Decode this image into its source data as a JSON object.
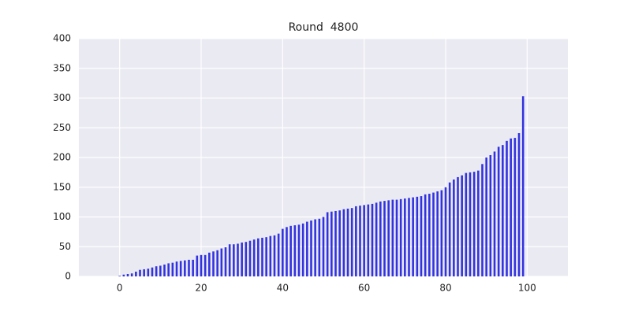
{
  "chart_data": {
    "type": "bar",
    "title": "Round  4800",
    "x": [
      0,
      1,
      2,
      3,
      4,
      5,
      6,
      7,
      8,
      9,
      10,
      11,
      12,
      13,
      14,
      15,
      16,
      17,
      18,
      19,
      20,
      21,
      22,
      23,
      24,
      25,
      26,
      27,
      28,
      29,
      30,
      31,
      32,
      33,
      34,
      35,
      36,
      37,
      38,
      39,
      40,
      41,
      42,
      43,
      44,
      45,
      46,
      47,
      48,
      49,
      50,
      51,
      52,
      53,
      54,
      55,
      56,
      57,
      58,
      59,
      60,
      61,
      62,
      63,
      64,
      65,
      66,
      67,
      68,
      69,
      70,
      71,
      72,
      73,
      74,
      75,
      76,
      77,
      78,
      79,
      80,
      81,
      82,
      83,
      84,
      85,
      86,
      87,
      88,
      89,
      90,
      91,
      92,
      93,
      94,
      95,
      96,
      97,
      98,
      99
    ],
    "values": [
      1,
      3,
      4,
      5,
      8,
      11,
      12,
      13,
      15,
      17,
      18,
      20,
      22,
      23,
      25,
      26,
      27,
      28,
      28,
      35,
      36,
      36,
      40,
      42,
      44,
      47,
      49,
      54,
      54,
      55,
      57,
      58,
      60,
      62,
      64,
      65,
      66,
      68,
      69,
      72,
      80,
      83,
      85,
      86,
      87,
      89,
      92,
      94,
      96,
      97,
      100,
      108,
      109,
      110,
      111,
      113,
      114,
      115,
      118,
      119,
      120,
      121,
      122,
      124,
      126,
      127,
      128,
      129,
      129,
      130,
      131,
      132,
      133,
      134,
      135,
      138,
      139,
      141,
      143,
      145,
      150,
      158,
      163,
      167,
      170,
      174,
      175,
      176,
      178,
      189,
      200,
      204,
      210,
      218,
      221,
      228,
      232,
      233,
      241,
      303
    ],
    "color": "#3232e0",
    "xlim": [
      -10,
      110
    ],
    "xticks": [
      0,
      20,
      40,
      60,
      80,
      100
    ],
    "ylim": [
      0,
      400
    ],
    "yticks": [
      0,
      50,
      100,
      150,
      200,
      250,
      300,
      350,
      400
    ],
    "grid": true
  }
}
